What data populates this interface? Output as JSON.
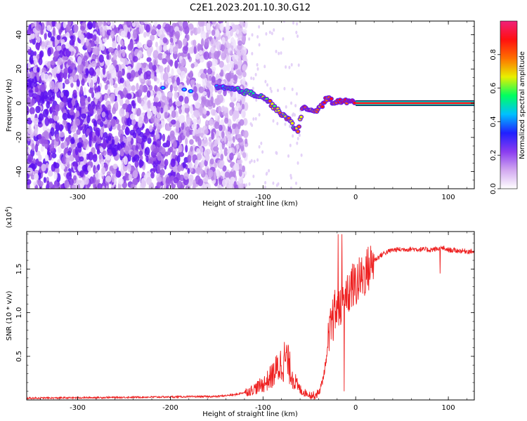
{
  "figure": {
    "title": "C2E1.2023.201.10.30.G12"
  },
  "chart_data": [
    {
      "type": "heatmap",
      "xlabel": "Height of straight line (km)",
      "ylabel": "Frequency (Hz)",
      "xlim": [
        -355,
        128
      ],
      "ylim": [
        -50,
        48
      ],
      "xticks": [
        "-300",
        "-200",
        "-100",
        "0",
        "100"
      ],
      "xtick_values": [
        -300,
        -200,
        -100,
        0,
        100
      ],
      "yticks": [
        "-40",
        "-20",
        "0",
        "20",
        "40"
      ],
      "ytick_values": [
        -40,
        -20,
        0,
        20,
        40
      ],
      "colorbar": {
        "label": "Normalized spectral amplitude",
        "range": [
          0,
          1
        ],
        "ticks": [
          "0.0",
          "0.2",
          "0.4",
          "0.6",
          "0.8"
        ],
        "tick_values": [
          0.0,
          0.2,
          0.4,
          0.6,
          0.8
        ],
        "colors": [
          "#ffffff",
          "#d2a8f0",
          "#8a3cf0",
          "#2020ff",
          "#00c0ff",
          "#00ff60",
          "#e8f000",
          "#ff7000",
          "#ff1010",
          "#f0207a"
        ]
      },
      "noise_region_x": [
        -355,
        -118
      ],
      "ridge": [
        [
          -150,
          9
        ],
        [
          -130,
          8
        ],
        [
          -115,
          6
        ],
        [
          -100,
          4
        ],
        [
          -92,
          0
        ],
        [
          -85,
          -4
        ],
        [
          -78,
          -7
        ],
        [
          -72,
          -10
        ],
        [
          -66,
          -14
        ],
        [
          -62,
          -16
        ],
        [
          -57,
          -2
        ],
        [
          -50,
          -5
        ],
        [
          -43,
          -4
        ],
        [
          -37,
          -2
        ],
        [
          -32,
          3
        ],
        [
          -25,
          1
        ],
        [
          -15,
          1
        ],
        [
          -5,
          1
        ],
        [
          0,
          0
        ],
        [
          40,
          0
        ],
        [
          90,
          0
        ],
        [
          128,
          0
        ]
      ],
      "secondary_blobs": [
        [
          -208,
          9
        ],
        [
          -185,
          8
        ],
        [
          -178,
          7
        ]
      ]
    },
    {
      "type": "line",
      "xlabel": "Height of straight line (km)",
      "ylabel": "SNR (10 * v/v)",
      "scale_label": "(x10",
      "scale_exp": "4",
      "scale_suffix": ")",
      "xlim": [
        -355,
        128
      ],
      "ylim": [
        0,
        1.93
      ],
      "xticks": [
        "-300",
        "-200",
        "-100",
        "0",
        "100"
      ],
      "xtick_values": [
        -300,
        -200,
        -100,
        0,
        100
      ],
      "yticks": [
        "0.5",
        "1.0",
        "1.5"
      ],
      "ytick_values": [
        0.5,
        1.0,
        1.5
      ],
      "color": "#ee2020",
      "series": [
        {
          "x": [
            -355,
            -300,
            -250,
            -200,
            -150,
            -130,
            -115,
            -105,
            -97,
            -90,
            -85,
            -80,
            -75,
            -70,
            -66,
            -62,
            -58,
            -54,
            -50,
            -45,
            -40,
            -36,
            -32,
            -28,
            -24,
            -20,
            -17,
            -14,
            -11,
            -8,
            -5,
            0,
            5,
            10,
            15,
            20,
            25,
            30,
            40,
            60,
            80,
            95,
            100,
            110,
            128
          ],
          "y": [
            0.02,
            0.025,
            0.03,
            0.035,
            0.04,
            0.06,
            0.1,
            0.15,
            0.2,
            0.28,
            0.35,
            0.42,
            0.48,
            0.33,
            0.22,
            0.14,
            0.1,
            0.08,
            0.06,
            0.05,
            0.08,
            0.2,
            0.45,
            0.75,
            0.95,
            1.05,
            1.1,
            1.2,
            1.1,
            1.2,
            1.3,
            1.32,
            1.38,
            1.45,
            1.52,
            1.6,
            1.64,
            1.68,
            1.72,
            1.73,
            1.72,
            1.74,
            1.72,
            1.71,
            1.7
          ]
        }
      ]
    }
  ]
}
